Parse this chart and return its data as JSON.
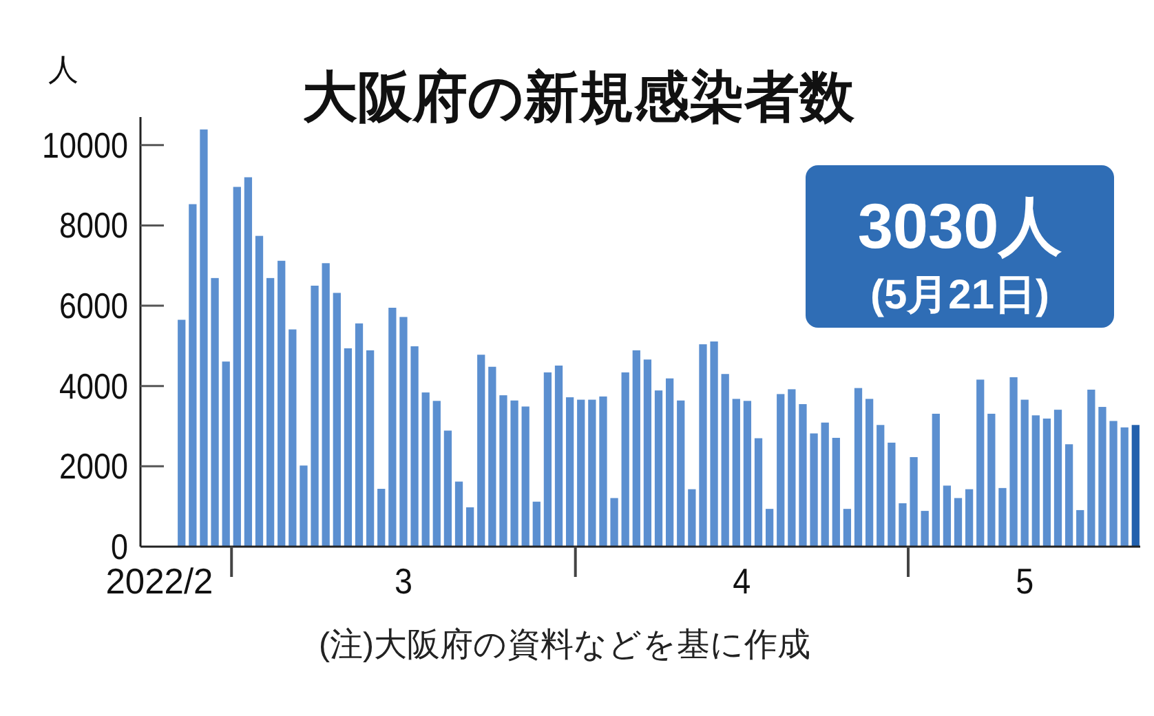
{
  "chart_data": {
    "type": "bar",
    "title": "大阪府の新規感染者数",
    "ylabel": "人",
    "x": [
      "2022-02-24",
      "2022-02-25",
      "2022-02-26",
      "2022-02-27",
      "2022-02-28",
      "2022-03-01",
      "2022-03-02",
      "2022-03-03",
      "2022-03-04",
      "2022-03-05",
      "2022-03-06",
      "2022-03-07",
      "2022-03-08",
      "2022-03-09",
      "2022-03-10",
      "2022-03-11",
      "2022-03-12",
      "2022-03-13",
      "2022-03-14",
      "2022-03-15",
      "2022-03-16",
      "2022-03-17",
      "2022-03-18",
      "2022-03-19",
      "2022-03-20",
      "2022-03-21",
      "2022-03-22",
      "2022-03-23",
      "2022-03-24",
      "2022-03-25",
      "2022-03-26",
      "2022-03-27",
      "2022-03-28",
      "2022-03-29",
      "2022-03-30",
      "2022-03-31",
      "2022-04-01",
      "2022-04-02",
      "2022-04-03",
      "2022-04-04",
      "2022-04-05",
      "2022-04-06",
      "2022-04-07",
      "2022-04-08",
      "2022-04-09",
      "2022-04-10",
      "2022-04-11",
      "2022-04-12",
      "2022-04-13",
      "2022-04-14",
      "2022-04-15",
      "2022-04-16",
      "2022-04-17",
      "2022-04-18",
      "2022-04-19",
      "2022-04-20",
      "2022-04-21",
      "2022-04-22",
      "2022-04-23",
      "2022-04-24",
      "2022-04-25",
      "2022-04-26",
      "2022-04-27",
      "2022-04-28",
      "2022-04-29",
      "2022-04-30",
      "2022-05-01",
      "2022-05-02",
      "2022-05-03",
      "2022-05-04",
      "2022-05-05",
      "2022-05-06",
      "2022-05-07",
      "2022-05-08",
      "2022-05-09",
      "2022-05-10",
      "2022-05-11",
      "2022-05-12",
      "2022-05-13",
      "2022-05-14",
      "2022-05-15",
      "2022-05-16",
      "2022-05-17",
      "2022-05-18",
      "2022-05-19",
      "2022-05-20",
      "2022-05-21"
    ],
    "values": [
      5650,
      8530,
      10390,
      6690,
      4610,
      8960,
      9200,
      7740,
      6690,
      7120,
      5410,
      2020,
      6500,
      7060,
      6320,
      4940,
      5560,
      4890,
      1440,
      5950,
      5720,
      4990,
      3840,
      3630,
      2890,
      1620,
      980,
      4780,
      4480,
      3770,
      3640,
      3490,
      1120,
      4340,
      4510,
      3720,
      3660,
      3660,
      3740,
      1210,
      4340,
      4890,
      4660,
      3890,
      4190,
      3640,
      1430,
      5040,
      5110,
      4300,
      3680,
      3630,
      2700,
      940,
      3800,
      3920,
      3550,
      2820,
      3090,
      2710,
      940,
      3950,
      3680,
      3030,
      2590,
      1080,
      2230,
      890,
      3310,
      1520,
      1210,
      1430,
      4160,
      3310,
      1460,
      4220,
      3660,
      3270,
      3190,
      3410,
      2550,
      910,
      3910,
      3480,
      3130,
      2970,
      3030
    ],
    "colors": [
      "#5b8fd0",
      "#5b8fd0",
      "#5b8fd0",
      "#5b8fd0",
      "#5b8fd0",
      "#5b8fd0",
      "#5b8fd0",
      "#5b8fd0",
      "#5b8fd0",
      "#5b8fd0",
      "#5b8fd0",
      "#5b8fd0",
      "#5b8fd0",
      "#5b8fd0",
      "#5b8fd0",
      "#5b8fd0",
      "#5b8fd0",
      "#5b8fd0",
      "#5b8fd0",
      "#5b8fd0",
      "#5b8fd0",
      "#5b8fd0",
      "#5b8fd0",
      "#5b8fd0",
      "#5b8fd0",
      "#5b8fd0",
      "#5b8fd0",
      "#5b8fd0",
      "#5b8fd0",
      "#5b8fd0",
      "#5b8fd0",
      "#5b8fd0",
      "#5b8fd0",
      "#5b8fd0",
      "#5b8fd0",
      "#5b8fd0",
      "#5b8fd0",
      "#5b8fd0",
      "#5b8fd0",
      "#5b8fd0",
      "#5b8fd0",
      "#5b8fd0",
      "#5b8fd0",
      "#5b8fd0",
      "#5b8fd0",
      "#5b8fd0",
      "#5b8fd0",
      "#5b8fd0",
      "#5b8fd0",
      "#5b8fd0",
      "#5b8fd0",
      "#5b8fd0",
      "#5b8fd0",
      "#5b8fd0",
      "#5b8fd0",
      "#5b8fd0",
      "#5b8fd0",
      "#5b8fd0",
      "#5b8fd0",
      "#5b8fd0",
      "#5b8fd0",
      "#5b8fd0",
      "#5b8fd0",
      "#5b8fd0",
      "#5b8fd0",
      "#5b8fd0",
      "#5b8fd0",
      "#5b8fd0",
      "#5b8fd0",
      "#5b8fd0",
      "#5b8fd0",
      "#5b8fd0",
      "#5b8fd0",
      "#5b8fd0",
      "#5b8fd0",
      "#5b8fd0",
      "#5b8fd0",
      "#5b8fd0",
      "#5b8fd0",
      "#5b8fd0",
      "#5b8fd0",
      "#5b8fd0",
      "#5b8fd0",
      "#5b8fd0",
      "#5b8fd0",
      "#5b8fd0",
      "#2260ad"
    ],
    "xlim": [
      "2022-02-20T07:00",
      "2022-05-21T10:00"
    ],
    "xticks": [
      {
        "value": "2022-02-22",
        "label": "2022/2"
      },
      {
        "value": "2022-03-16",
        "label": "3"
      },
      {
        "value": "2022-04-15T12:00",
        "label": "4"
      },
      {
        "value": "2022-05-11",
        "label": "5"
      }
    ],
    "ylim": [
      0,
      10700
    ],
    "yticks": [
      0,
      2000,
      4000,
      6000,
      8000,
      10000
    ],
    "annotations": [
      "3030人\n(5月21日)",
      "(注)大阪府の資料などを基に作成"
    ]
  }
}
